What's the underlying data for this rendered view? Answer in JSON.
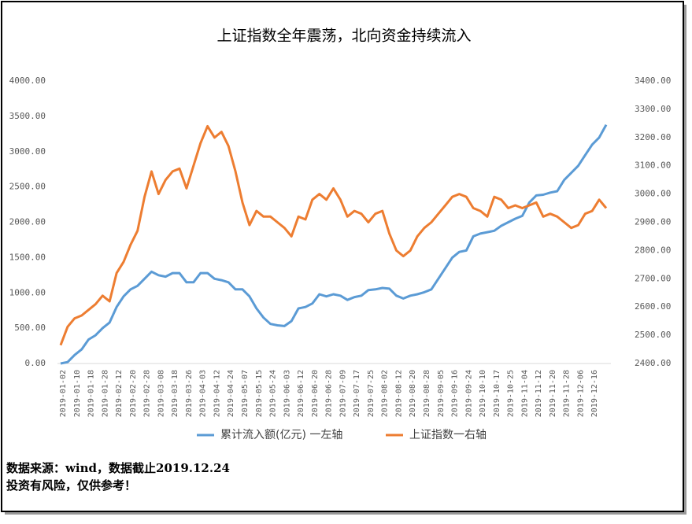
{
  "chart_data": {
    "type": "line",
    "title": "上证指数全年震荡，北向资金持续流入",
    "categories": [
      "2019-01-02",
      null,
      "2019-01-10",
      null,
      "2019-01-18",
      null,
      "2019-01-28",
      null,
      "2019-02-12",
      null,
      "2019-02-20",
      null,
      "2019-02-28",
      null,
      "2019-03-08",
      null,
      "2019-03-18",
      null,
      "2019-03-26",
      null,
      "2019-04-03",
      null,
      "2019-04-12",
      null,
      "2019-04-24",
      null,
      "2019-05-07",
      null,
      "2019-05-15",
      null,
      "2019-05-24",
      null,
      "2019-06-03",
      null,
      "2019-06-12",
      null,
      "2019-06-20",
      null,
      "2019-06-28",
      null,
      "2019-07-09",
      null,
      "2019-07-17",
      null,
      "2019-07-25",
      null,
      "2019-08-02",
      null,
      "2019-08-12",
      null,
      "2019-08-20",
      null,
      "2019-08-28",
      null,
      "2019-09-05",
      null,
      "2019-09-16",
      null,
      "2019-09-24",
      null,
      "2019-10-10",
      null,
      "2019-10-17",
      null,
      "2019-10-25",
      null,
      "2019-11-04",
      null,
      "2019-11-12",
      null,
      "2019-11-20",
      null,
      "2019-11-28",
      null,
      "2019-12-06",
      null,
      "2019-12-16",
      null,
      null
    ],
    "series": [
      {
        "name": "累计流入额(亿元) 一左轴",
        "color": "#5b9bd5",
        "axis": "y",
        "values": [
          0,
          20,
          120,
          200,
          340,
          400,
          500,
          580,
          800,
          950,
          1050,
          1100,
          1200,
          1300,
          1250,
          1230,
          1280,
          1280,
          1150,
          1150,
          1280,
          1280,
          1200,
          1180,
          1150,
          1050,
          1050,
          950,
          780,
          650,
          560,
          540,
          530,
          600,
          780,
          800,
          850,
          980,
          950,
          980,
          960,
          900,
          940,
          960,
          1040,
          1050,
          1070,
          1060,
          960,
          920,
          960,
          980,
          1010,
          1050,
          1200,
          1350,
          1500,
          1580,
          1600,
          1800,
          1840,
          1860,
          1880,
          1950,
          2000,
          2050,
          2090,
          2280,
          2380,
          2390,
          2420,
          2440,
          2600,
          2700,
          2800,
          2950,
          3100,
          3200,
          3380
        ]
      },
      {
        "name": "上证指数一右轴",
        "color": "#ed7d31",
        "axis": "y2",
        "values": [
          2465,
          2530,
          2560,
          2570,
          2590,
          2610,
          2640,
          2620,
          2720,
          2760,
          2820,
          2870,
          2990,
          3080,
          3000,
          3050,
          3080,
          3090,
          3020,
          3100,
          3180,
          3240,
          3200,
          3220,
          3170,
          3080,
          2970,
          2890,
          2940,
          2920,
          2920,
          2900,
          2880,
          2850,
          2920,
          2910,
          2980,
          3000,
          2980,
          3020,
          2980,
          2920,
          2940,
          2930,
          2900,
          2930,
          2940,
          2860,
          2800,
          2780,
          2800,
          2850,
          2880,
          2900,
          2930,
          2960,
          2990,
          3000,
          2990,
          2950,
          2940,
          2920,
          2990,
          2980,
          2950,
          2960,
          2950,
          2960,
          2970,
          2920,
          2930,
          2920,
          2900,
          2880,
          2890,
          2930,
          2940,
          2980,
          2950
        ]
      }
    ],
    "ylim": [
      0,
      4000
    ],
    "yticks": [
      {
        "value": 0,
        "label": "0.00"
      },
      {
        "value": 500,
        "label": "500.00"
      },
      {
        "value": 1000,
        "label": "1000.00"
      },
      {
        "value": 1500,
        "label": "1500.00"
      },
      {
        "value": 2000,
        "label": "2000.00"
      },
      {
        "value": 2500,
        "label": "2500.00"
      },
      {
        "value": 3000,
        "label": "3000.00"
      },
      {
        "value": 3500,
        "label": "3500.00"
      },
      {
        "value": 4000,
        "label": "4000.00"
      }
    ],
    "y2lim": [
      2400,
      3400
    ],
    "y2ticks": [
      {
        "value": 2400,
        "label": "2400.00"
      },
      {
        "value": 2500,
        "label": "2500.00"
      },
      {
        "value": 2600,
        "label": "2600.00"
      },
      {
        "value": 2700,
        "label": "2700.00"
      },
      {
        "value": 2800,
        "label": "2800.00"
      },
      {
        "value": 2900,
        "label": "2900.00"
      },
      {
        "value": 3000,
        "label": "3000.00"
      },
      {
        "value": 3100,
        "label": "3100.00"
      },
      {
        "value": 3200,
        "label": "3200.00"
      },
      {
        "value": 3300,
        "label": "3300.00"
      },
      {
        "value": 3400,
        "label": "3400.00"
      }
    ],
    "grid": false,
    "legend": "bottom",
    "source": "数据来源：wind，数据截止2019.12.24",
    "note": "投资有风险，仅供参考！"
  }
}
